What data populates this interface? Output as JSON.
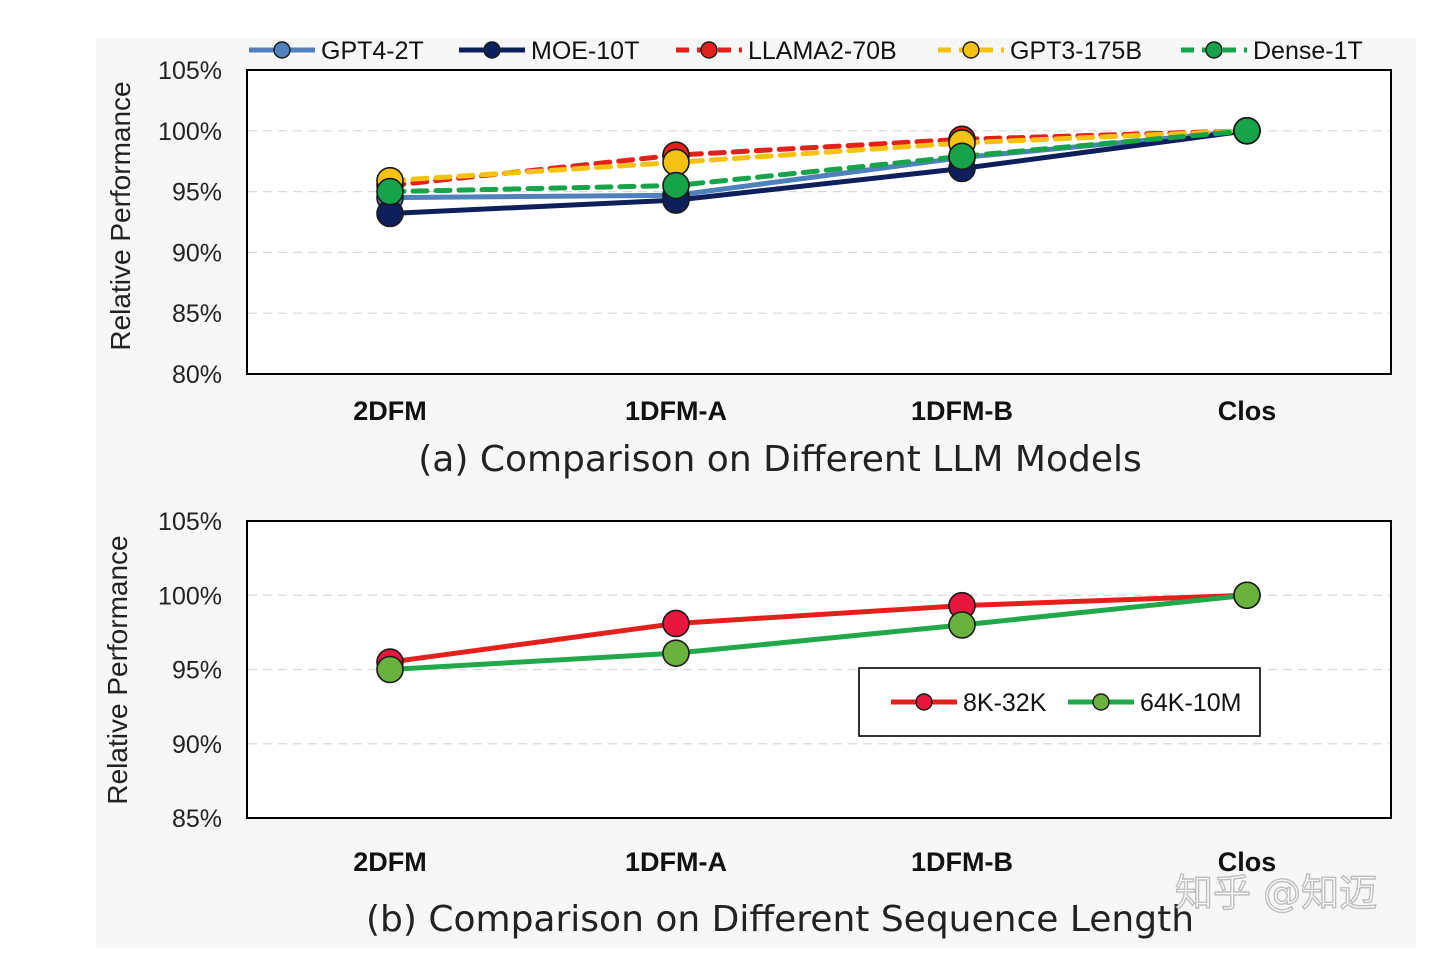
{
  "chart_data": [
    {
      "type": "line",
      "caption": "(a)  Comparison on Different LLM Models",
      "ylabel": "Relative Performance",
      "categories": [
        "2DFM",
        "1DFM-A",
        "1DFM-B",
        "Clos"
      ],
      "ylim": [
        80,
        105
      ],
      "yticks": [
        80,
        85,
        90,
        95,
        100,
        105
      ],
      "ytick_labels": [
        "80%",
        "85%",
        "90%",
        "95%",
        "100%",
        "105%"
      ],
      "grid": true,
      "legend_position": "top",
      "series": [
        {
          "name": "GPT4-2T",
          "values": [
            94.5,
            94.7,
            97.8,
            100
          ],
          "color": "#4f81bd",
          "dashed": false
        },
        {
          "name": "MOE-10T",
          "values": [
            93.2,
            94.3,
            96.9,
            100
          ],
          "color": "#0f1f5c",
          "dashed": false
        },
        {
          "name": "LLAMA2-70B",
          "values": [
            95.5,
            98.0,
            99.3,
            100
          ],
          "color": "#e3201b",
          "dashed": true
        },
        {
          "name": "GPT3-175B",
          "values": [
            95.9,
            97.4,
            99.0,
            100
          ],
          "color": "#f5c211",
          "dashed": true
        },
        {
          "name": "Dense-1T",
          "values": [
            95.0,
            95.5,
            97.9,
            100
          ],
          "color": "#16a34a",
          "dashed": true
        }
      ]
    },
    {
      "type": "line",
      "caption": "(b)  Comparison on Different Sequence Length",
      "ylabel": "Relative Performance",
      "categories": [
        "2DFM",
        "1DFM-A",
        "1DFM-B",
        "Clos"
      ],
      "ylim": [
        85,
        105
      ],
      "yticks": [
        85,
        90,
        95,
        100,
        105
      ],
      "ytick_labels": [
        "85%",
        "90%",
        "95%",
        "100%",
        "105%"
      ],
      "grid": true,
      "legend_position": "center-right",
      "series": [
        {
          "name": "8K-32K",
          "values": [
            95.5,
            98.1,
            99.3,
            100
          ],
          "color": "#e3201b",
          "marker": "#e8163c",
          "dashed": false
        },
        {
          "name": "64K-10M",
          "values": [
            95.0,
            96.1,
            98.0,
            100
          ],
          "color": "#20a84a",
          "marker": "#6ab23e",
          "dashed": false
        }
      ]
    }
  ],
  "watermark": "知乎 @知迈"
}
